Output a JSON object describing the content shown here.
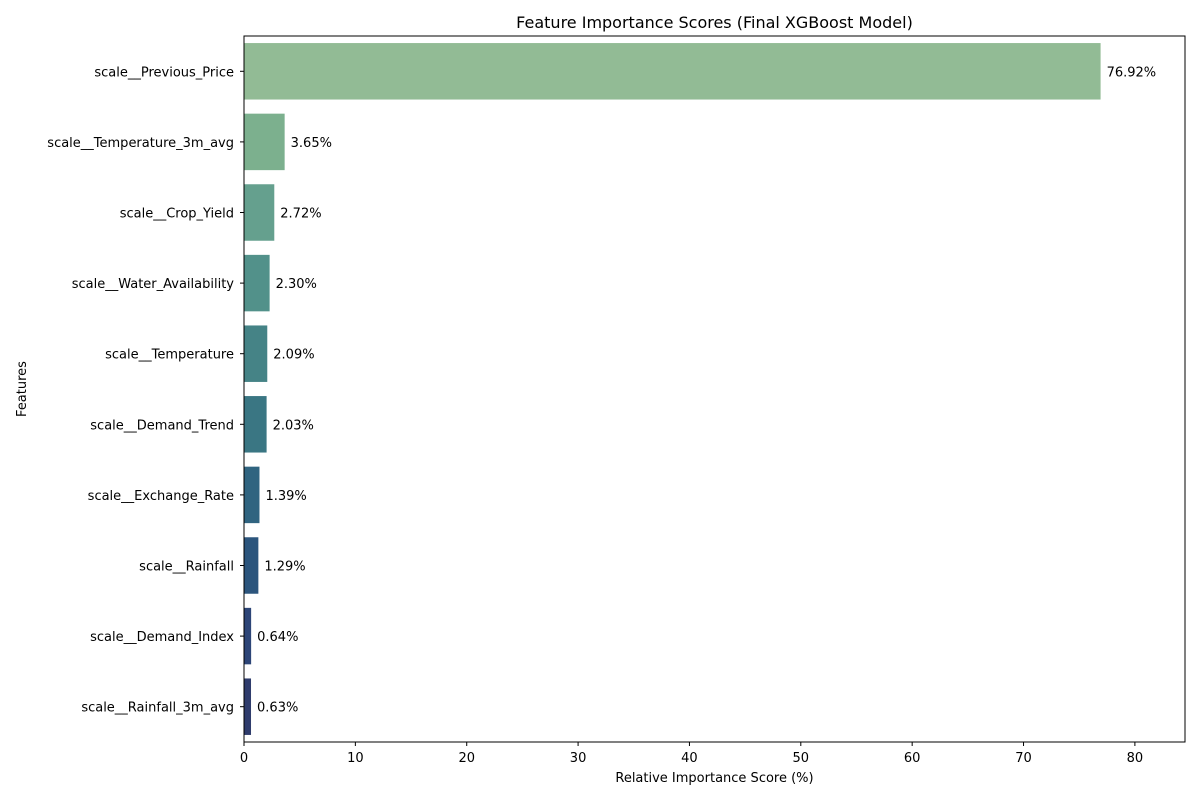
{
  "chart_data": {
    "type": "bar",
    "orientation": "horizontal",
    "title": "Feature Importance Scores (Final XGBoost Model)",
    "xlabel": "Relative Importance Score (%)",
    "ylabel": "Features",
    "xlim": [
      0,
      84.5
    ],
    "xticks": [
      0,
      10,
      20,
      30,
      40,
      50,
      60,
      70,
      80
    ],
    "grid": false,
    "categories": [
      "scale__Previous_Price",
      "scale__Temperature_3m_avg",
      "scale__Crop_Yield",
      "scale__Water_Availability",
      "scale__Temperature",
      "scale__Demand_Trend",
      "scale__Exchange_Rate",
      "scale__Rainfall",
      "scale__Demand_Index",
      "scale__Rainfall_3m_avg"
    ],
    "values": [
      76.92,
      3.65,
      2.72,
      2.3,
      2.09,
      2.03,
      1.39,
      1.29,
      0.64,
      0.63
    ],
    "data_labels": [
      "76.92%",
      "3.65%",
      "2.72%",
      "2.30%",
      "2.09%",
      "2.03%",
      "1.39%",
      "1.29%",
      "0.64%",
      "0.63%"
    ],
    "colors": [
      "#92bb95",
      "#7cb08e",
      "#65a08e",
      "#52918a",
      "#458386",
      "#3a7683",
      "#306480",
      "#2c557d",
      "#2d4577",
      "#2f3c6c"
    ]
  }
}
